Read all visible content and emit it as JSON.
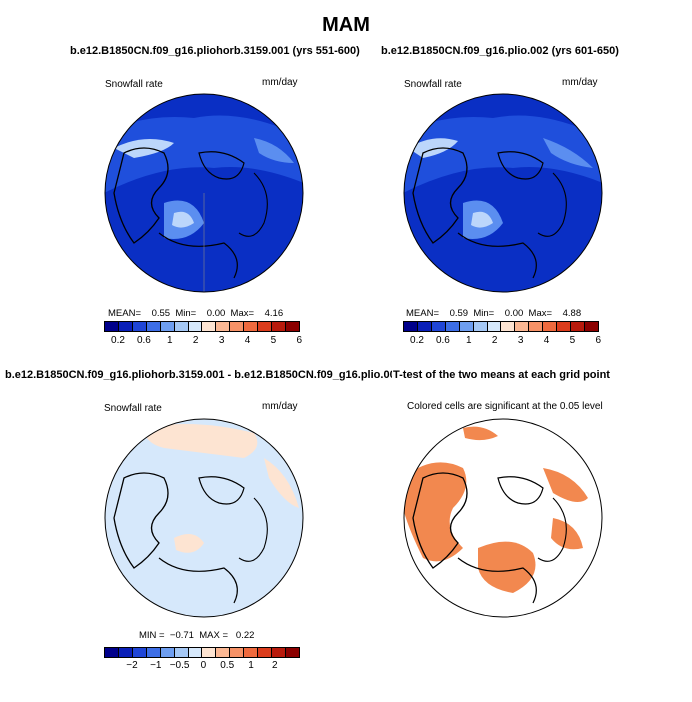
{
  "figure": {
    "title": "MAM"
  },
  "panels": [
    {
      "id": "p1",
      "title": "b.e12.B1850CN.f09_g16.pliohorb.3159.001 (yrs 551-600)",
      "left_label": "Snowfall rate",
      "right_label": "mm/day",
      "stats": {
        "mean_label": "MEAN=",
        "mean": "0.55",
        "min_label": "Min=",
        "min": "0.00",
        "max_label": "Max=",
        "max": "4.16"
      }
    },
    {
      "id": "p2",
      "title": "b.e12.B1850CN.f09_g16.plio.002 (yrs 601-650)",
      "left_label": "Snowfall rate",
      "right_label": "mm/day",
      "stats": {
        "mean_label": "MEAN=",
        "mean": "0.59",
        "min_label": "Min=",
        "min": "0.00",
        "max_label": "Max=",
        "max": "4.88"
      }
    },
    {
      "id": "p3",
      "title": "b.e12.B1850CN.f09_g16.pliohorb.3159.001 - b.e12.B1850CN.f09_g16.plio.002",
      "left_label": "Snowfall rate",
      "right_label": "mm/day",
      "stats": {
        "min_label": "MIN =",
        "min": "−0.71",
        "max_label": "MAX =",
        "max": "0.22"
      }
    },
    {
      "id": "p4",
      "title": "T-test of the two means at each grid point",
      "left_label": "Colored cells are significant at the 0.05 level"
    }
  ],
  "colorbars": {
    "abs": {
      "colors": [
        "#00008b",
        "#0a1fb8",
        "#1f45d6",
        "#3d6ee6",
        "#6e9ef0",
        "#a5c8f5",
        "#d6e8fb",
        "#fde4d2",
        "#fbb894",
        "#f69267",
        "#ef6a3e",
        "#db3c1c",
        "#b81a0c",
        "#8b0000"
      ],
      "ticks": [
        "0.2",
        "0.6",
        "1",
        "2",
        "3",
        "4",
        "5",
        "6"
      ]
    },
    "diff": {
      "colors": [
        "#00008b",
        "#0a1fb8",
        "#1f45d6",
        "#3d6ee6",
        "#6e9ef0",
        "#a5c8f5",
        "#d6e8fb",
        "#fde4d2",
        "#fbb894",
        "#f69267",
        "#ef6a3e",
        "#db3c1c",
        "#b81a0c",
        "#8b0000"
      ],
      "ticks": [
        "−2",
        "−1",
        "−0.5",
        "0",
        "0.5",
        "1",
        "2"
      ]
    }
  },
  "map_colors": {
    "ocean_deep": "#0a2fc4",
    "ocean_mid": "#1f4fdc",
    "snow_mid": "#5b8ef0",
    "snow_high": "#bcd6fb",
    "diff_neg": "#d6e8fb",
    "diff_pos": "#fde4d2",
    "significant": "#f2884f"
  }
}
